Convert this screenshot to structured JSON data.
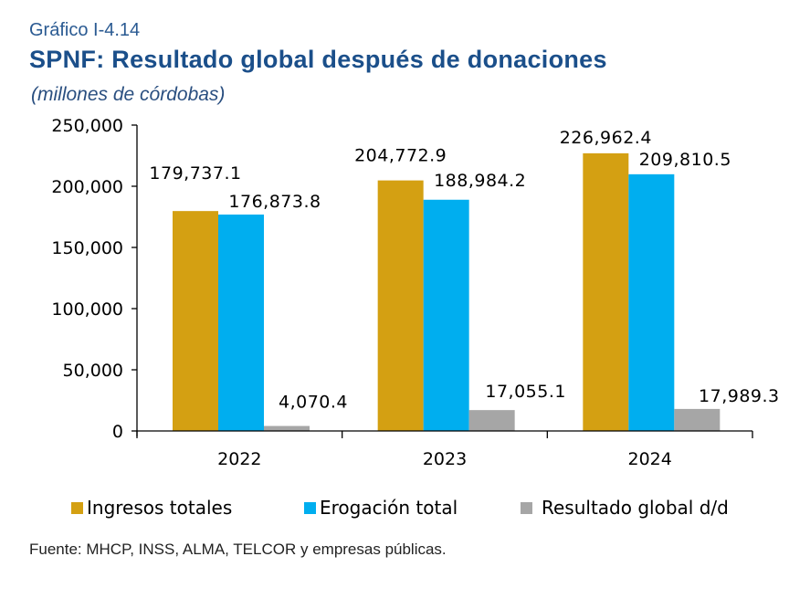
{
  "header": {
    "kicker": "Gráfico I-4.14",
    "title": "SPNF: Resultado global después de donaciones",
    "units": "(millones de córdobas)"
  },
  "source": "Fuente: MHCP, INSS, ALMA, TELCOR  y empresas públicas.",
  "colors": {
    "ingresos": "#D4A012",
    "erogacion": "#00AEEF",
    "resultado": "#A6A6A6"
  },
  "chart_data": {
    "type": "bar",
    "categories": [
      "2022",
      "2023",
      "2024"
    ],
    "ylim": [
      0,
      250000
    ],
    "yticks": [
      0,
      50000,
      100000,
      150000,
      200000,
      250000
    ],
    "ytick_labels": [
      "0",
      "50,000",
      "100,000",
      "150,000",
      "200,000",
      "250,000"
    ],
    "grid": false,
    "legend_position": "bottom",
    "series": [
      {
        "name": "Ingresos totales",
        "color_key": "ingresos",
        "values": [
          179737.1,
          204772.9,
          226962.4
        ],
        "labels": [
          "179,737.1",
          "204,772.9",
          "226,962.4"
        ]
      },
      {
        "name": "Erogación total",
        "color_key": "erogacion",
        "values": [
          176873.8,
          188984.2,
          209810.5
        ],
        "labels": [
          "176,873.8",
          "188,984.2",
          "209,810.5"
        ]
      },
      {
        "name": "Resultado global d/d",
        "color_key": "resultado",
        "values": [
          4070.4,
          17055.1,
          17989.3
        ],
        "labels": [
          "4,070.4",
          "17,055.1",
          "17,989.3"
        ]
      }
    ]
  }
}
